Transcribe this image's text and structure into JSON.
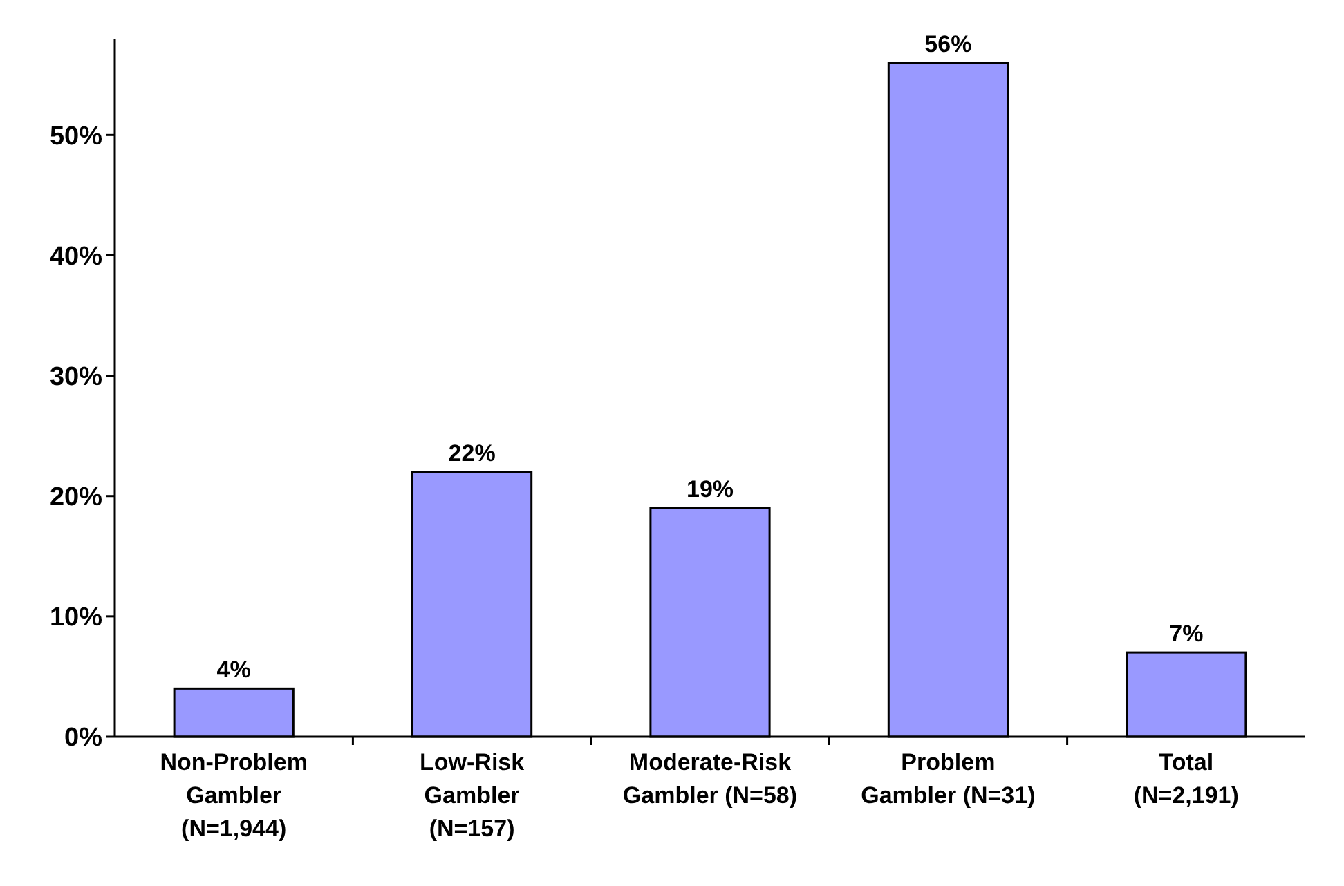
{
  "chart_data": {
    "type": "bar",
    "categories": [
      "Non-Problem Gambler (N=1,944)",
      "Low-Risk Gambler (N=157)",
      "Moderate-Risk Gambler (N=58)",
      "Problem Gambler (N=31)",
      "Total (N=2,191)"
    ],
    "values": [
      4,
      22,
      19,
      56,
      7
    ],
    "color": "#9999ff",
    "ylim": [
      0,
      58
    ],
    "yticks": [
      {
        "value": 0,
        "label": "0%"
      },
      {
        "value": 10,
        "label": "10%"
      },
      {
        "value": 20,
        "label": "20%"
      },
      {
        "value": 30,
        "label": "30%"
      },
      {
        "value": 40,
        "label": "40%"
      },
      {
        "value": 50,
        "label": "50%"
      }
    ],
    "value_labels": [
      "4%",
      "22%",
      "19%",
      "56%",
      "7%"
    ],
    "grid": false
  }
}
